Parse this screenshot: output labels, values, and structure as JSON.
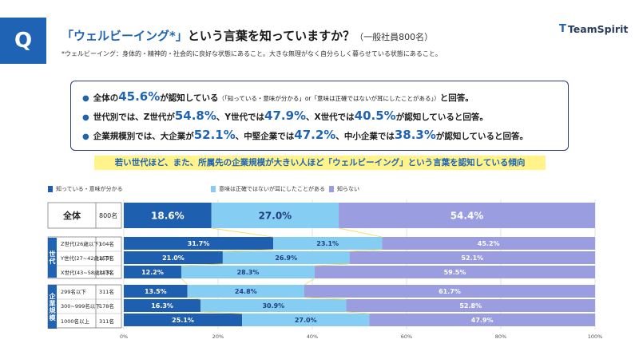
{
  "header": {
    "q_label": "Q",
    "title_quote": "「ウェルビーイング*」",
    "title_main": "という言葉を知っていますか？",
    "title_note": "（一般社員800名）",
    "subtitle": "*ウェルビーイング：身体的・精神的・社会的に良好な状態にあること。大きな無理がなく自分らしく暮らせている状態にあること。",
    "logo_mark": "T",
    "logo_text": "TeamSpirit"
  },
  "summary": {
    "line1": {
      "pre": "全体の",
      "v1": "45.6%",
      "mid": "が認知している",
      "note": "（「知っている・意味が分かる」or「意味は正確ではないが耳にしたことがある」）",
      "post": "と回答。"
    },
    "line2": {
      "pre": "世代別では、Z世代が",
      "v1": "54.8%",
      "mid1": "、Y世代では",
      "v2": "47.9%",
      "mid2": "、X世代では",
      "v3": "40.5%",
      "post": "が認知していると回答。"
    },
    "line3": {
      "pre": "企業規模別では、大企業が",
      "v1": "52.1%",
      "mid1": "、中堅企業では",
      "v2": "47.2%",
      "mid2": "、中小企業では",
      "v3": "38.3%",
      "post": "が認知していると回答。"
    }
  },
  "banner": "若い世代ほど、また、所属先の企業規模が大きい人ほど「ウェルビーイング」という言葉を認知している傾向",
  "legend": [
    {
      "label": "知っている・意味が分かる",
      "color": "#1f5fb0"
    },
    {
      "label": "意味は正確ではないが耳にしたことがある",
      "color": "#86cdf3"
    },
    {
      "label": "知らない",
      "color": "#9a9de0"
    }
  ],
  "groups": {
    "generation": "世代",
    "company": "企業規模"
  },
  "chart_data": {
    "type": "bar",
    "orientation": "horizontal",
    "stacked": true,
    "categories": [
      "全体",
      "Z世代(26歳以下)",
      "Y世代(27~42歳以下)",
      "X世代(43~58歳以下)",
      "299名以下",
      "300~999名以下",
      "1000名以上"
    ],
    "counts": [
      "800名",
      "104名",
      "353名",
      "343名",
      "311名",
      "178名",
      "311名"
    ],
    "series": [
      {
        "name": "知っている・意味が分かる",
        "values": [
          18.6,
          31.7,
          21.0,
          12.2,
          13.5,
          16.3,
          25.1
        ]
      },
      {
        "name": "意味は正確ではないが耳にしたことがある",
        "values": [
          27.0,
          23.1,
          26.9,
          28.3,
          24.8,
          30.9,
          27.0
        ]
      },
      {
        "name": "知らない",
        "values": [
          54.4,
          45.2,
          52.1,
          59.5,
          61.7,
          52.8,
          47.9
        ]
      }
    ],
    "xlim": [
      0,
      100
    ],
    "ticks": [
      "0%",
      "20%",
      "40%",
      "60%",
      "80%",
      "100%"
    ],
    "colors": [
      "#1f5fb0",
      "#86cdf3",
      "#9a9de0"
    ],
    "grid": true
  }
}
